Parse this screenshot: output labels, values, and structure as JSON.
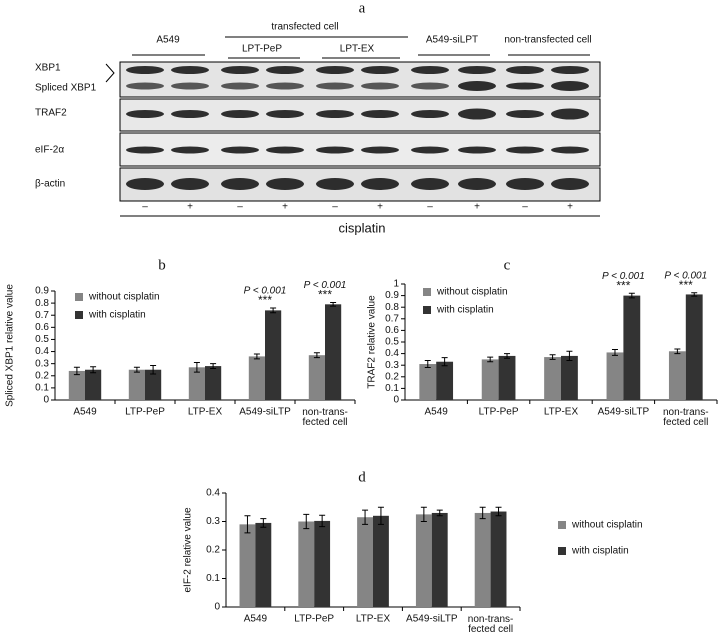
{
  "blot": {
    "panel_label": "a",
    "group_labels": [
      "A549",
      "transfected cell",
      "LPT-PeP",
      "LPT-EX",
      "A549-siLPT",
      "non-transfected cell"
    ],
    "row_labels": [
      "XBP1",
      "Spliced XBP1",
      "TRAF2",
      "eIF-2α",
      "β-actin"
    ],
    "treatment_signs": [
      "–",
      "+",
      "–",
      "+",
      "–",
      "+",
      "–",
      "+",
      "–",
      "+"
    ],
    "treatment_label": "cisplatin"
  },
  "chart_data": [
    {
      "type": "bar",
      "panel_label": "b",
      "ylabel": "Spliced XBP1 relative value",
      "categories": [
        "A549",
        "LTP-PeP",
        "LTP-EX",
        "A549-siLTP",
        "non-trans-\nfected cell"
      ],
      "series": [
        {
          "name": "without cisplatin",
          "color": "#858585",
          "values": [
            0.24,
            0.25,
            0.27,
            0.36,
            0.37
          ],
          "errors": [
            0.03,
            0.02,
            0.04,
            0.02,
            0.02
          ]
        },
        {
          "name": "with cisplatin",
          "color": "#333333",
          "values": [
            0.25,
            0.25,
            0.28,
            0.74,
            0.79
          ],
          "errors": [
            0.025,
            0.035,
            0.02,
            0.02,
            0.015
          ]
        }
      ],
      "annotations": [
        null,
        null,
        null,
        "P < 0.001",
        "P < 0.001"
      ],
      "significance": [
        null,
        null,
        null,
        "***",
        "***"
      ],
      "ylim": [
        0,
        0.9
      ],
      "yticks": [
        0,
        0.1,
        0.2,
        0.3,
        0.4,
        0.5,
        0.6,
        0.7,
        0.8,
        0.9
      ],
      "legend": "upper-left"
    },
    {
      "type": "bar",
      "panel_label": "c",
      "ylabel": "TRAF2 relative value",
      "categories": [
        "A549",
        "LTP-PeP",
        "LTP-EX",
        "A549-siLTP",
        "non-trans-\nfected cell"
      ],
      "series": [
        {
          "name": "without cisplatin",
          "color": "#858585",
          "values": [
            0.31,
            0.35,
            0.37,
            0.41,
            0.42
          ],
          "errors": [
            0.03,
            0.02,
            0.02,
            0.025,
            0.02
          ]
        },
        {
          "name": "with cisplatin",
          "color": "#333333",
          "values": [
            0.33,
            0.38,
            0.38,
            0.9,
            0.91
          ],
          "errors": [
            0.035,
            0.02,
            0.04,
            0.02,
            0.015
          ]
        }
      ],
      "annotations": [
        null,
        null,
        null,
        "P < 0.001",
        "P < 0.001"
      ],
      "significance": [
        null,
        null,
        null,
        "***",
        "***"
      ],
      "ylim": [
        0,
        1
      ],
      "yticks": [
        0,
        0.1,
        0.2,
        0.3,
        0.4,
        0.5,
        0.6,
        0.7,
        0.8,
        0.9,
        1
      ],
      "legend": "upper-left"
    },
    {
      "type": "bar",
      "panel_label": "d",
      "ylabel": "eIF-2 relative value",
      "categories": [
        "A549",
        "LTP-PeP",
        "LTP-EX",
        "A549-siLTP",
        "non-trans-\nfected cell"
      ],
      "series": [
        {
          "name": "without cisplatin",
          "color": "#858585",
          "values": [
            0.29,
            0.3,
            0.315,
            0.325,
            0.33
          ],
          "errors": [
            0.03,
            0.025,
            0.025,
            0.025,
            0.02
          ]
        },
        {
          "name": "with cisplatin",
          "color": "#333333",
          "values": [
            0.295,
            0.302,
            0.32,
            0.33,
            0.335
          ],
          "errors": [
            0.015,
            0.02,
            0.03,
            0.01,
            0.015
          ]
        }
      ],
      "ylim": [
        0,
        0.4
      ],
      "yticks": [
        0,
        0.1,
        0.2,
        0.3,
        0.4
      ],
      "legend": "right"
    }
  ]
}
